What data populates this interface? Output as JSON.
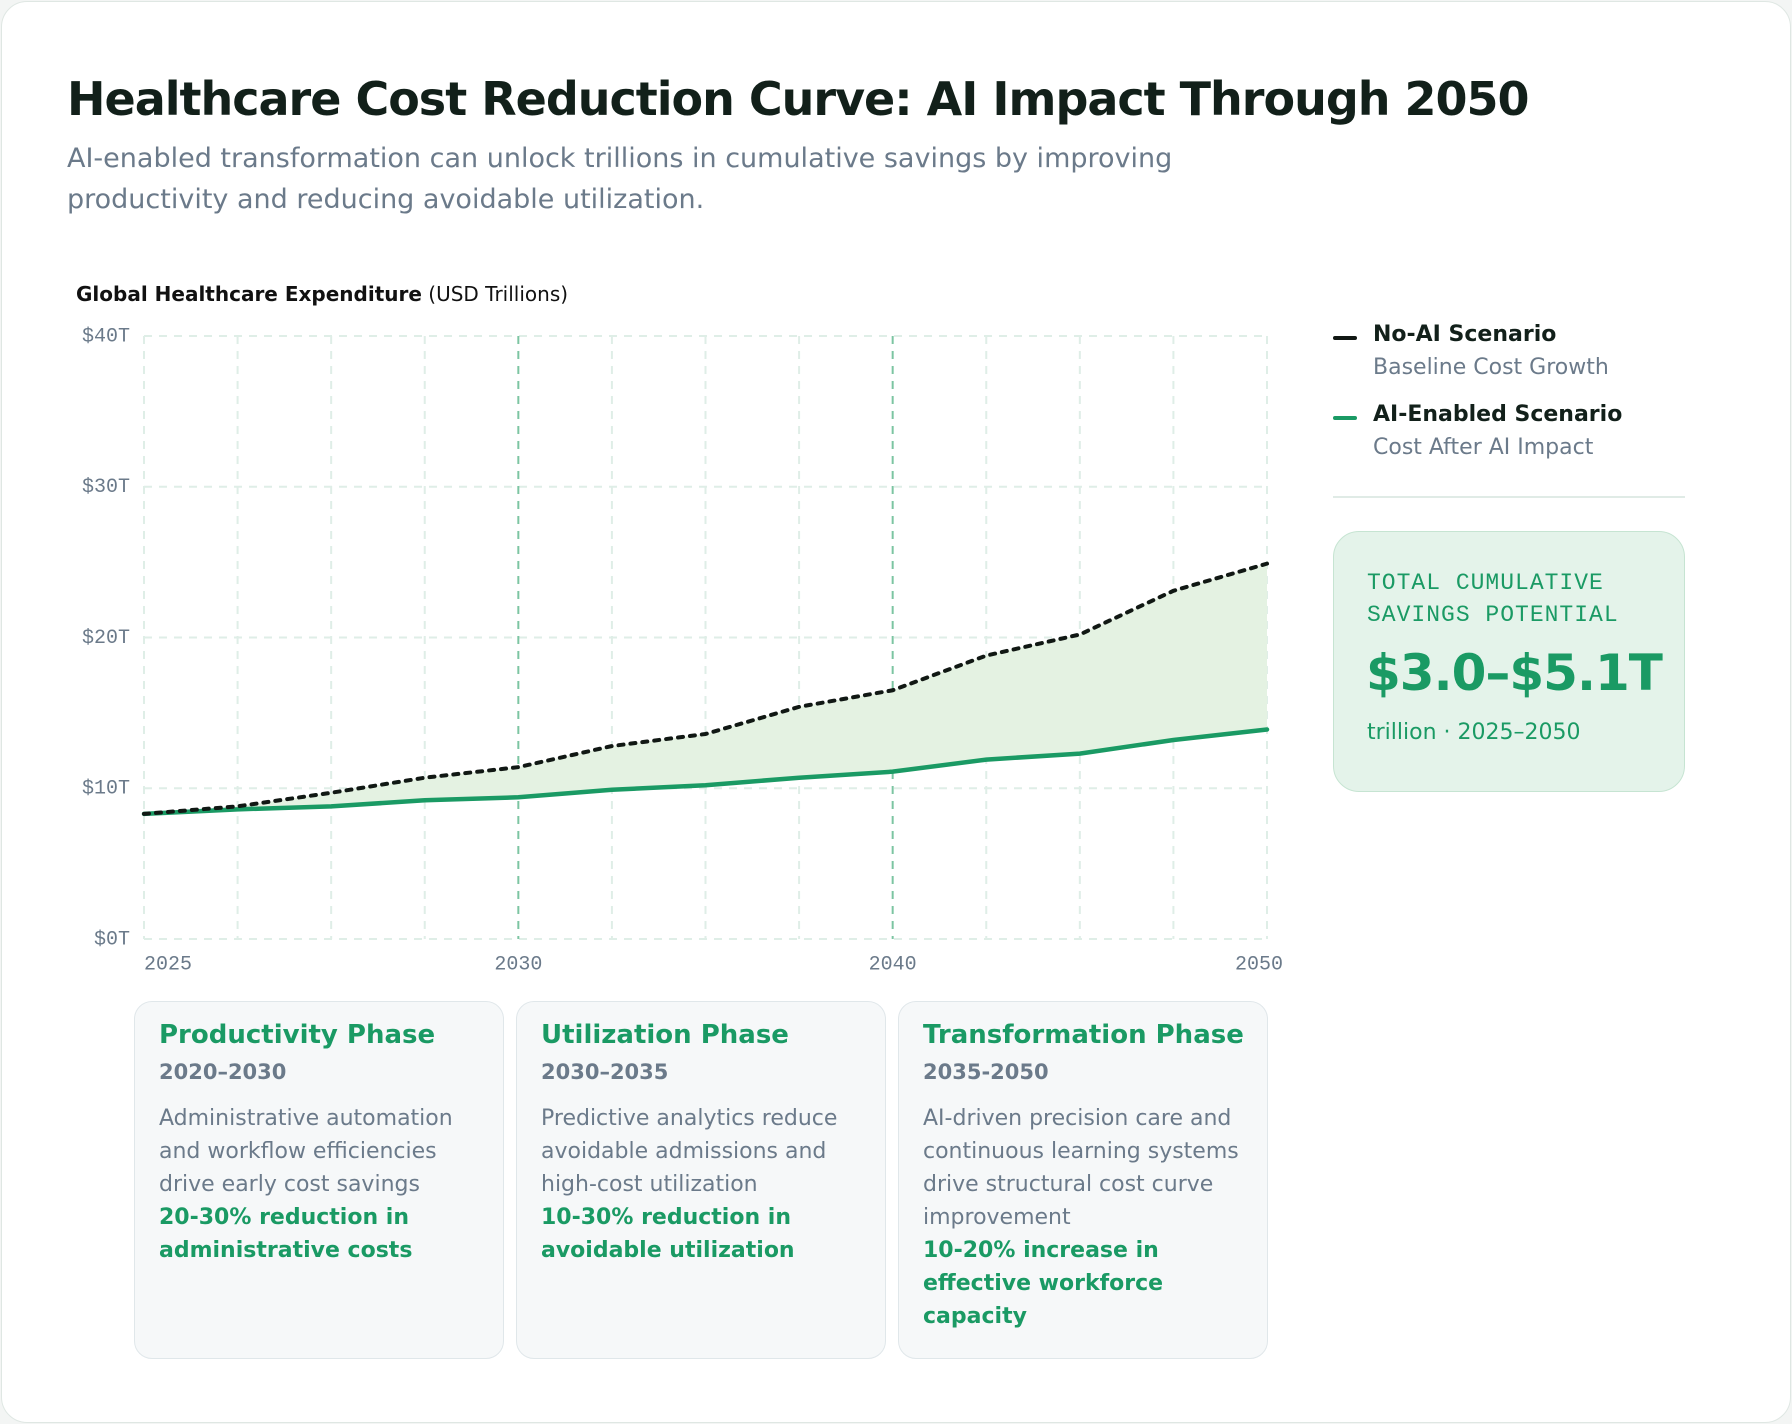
{
  "chart_data": {
    "type": "line",
    "title": "Healthcare Cost Reduction Curve: AI Impact Through 2050",
    "subtitle": "AI-enabled transformation can unlock trillions in cumulative savings by improving productivity and reducing avoidable utilization.",
    "y_label": "Global Healthcare Expenditure",
    "y_unit": "(USD Trillions)",
    "categories": [
      "2025",
      null,
      null,
      null,
      "2030",
      null,
      null,
      null,
      "2040",
      null,
      null,
      null,
      "2050"
    ],
    "series": [
      {
        "name": "No-AI Scenario",
        "subtitle": "Baseline Cost Growth",
        "color": "#111814",
        "style": "dotted",
        "values": [
          8.3,
          8.8,
          9.7,
          10.7,
          11.4,
          12.8,
          13.6,
          15.4,
          16.5,
          18.8,
          20.2,
          23.1,
          24.9
        ]
      },
      {
        "name": "AI-Enabled Scenario",
        "subtitle": "Cost After AI Impact",
        "color": "#1a9a64",
        "style": "solid",
        "values": [
          8.3,
          8.6,
          8.8,
          9.2,
          9.4,
          9.9,
          10.2,
          10.7,
          11.1,
          11.9,
          12.3,
          13.2,
          13.9
        ]
      }
    ],
    "area_color": "#e4f2e2",
    "ylim": [
      0,
      40
    ],
    "yticks": [
      {
        "value": 0,
        "label": "$0T"
      },
      {
        "value": 10,
        "label": "$10T"
      },
      {
        "value": 20,
        "label": "$20T"
      },
      {
        "value": 30,
        "label": "$30T"
      },
      {
        "value": 40,
        "label": "$40T"
      }
    ],
    "grid": true
  },
  "savings_box": {
    "title": "TOTAL CUMULATIVE SAVINGS POTENTIAL",
    "value": "$3.0–$5.1T",
    "note": "trillion · 2025–2050"
  },
  "phases": [
    {
      "title": "Productivity Phase",
      "period": "2020–2030",
      "text": "Administrative automation and workflow efficiencies drive early cost savings",
      "highlight": "20-30% reduction in administrative costs"
    },
    {
      "title": "Utilization Phase",
      "period": "2030–2035",
      "text": "Predictive analytics reduce avoidable admissions and high-cost utilization",
      "highlight": "10-30% reduction in avoidable utilization"
    },
    {
      "title": "Transformation Phase",
      "period": "2035-2050",
      "text": "AI-driven precision care and continuous learning systems drive structural cost curve improvement",
      "highlight": "10-20% increase in effective workforce capacity"
    }
  ]
}
